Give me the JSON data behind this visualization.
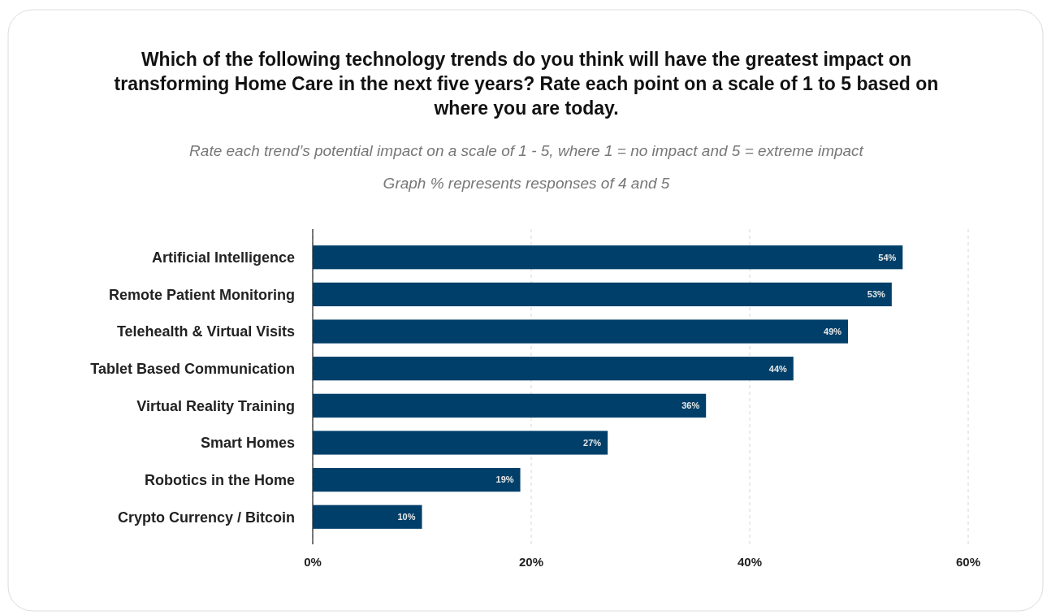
{
  "chart_data": {
    "type": "bar",
    "orientation": "horizontal",
    "title": "Which of the following technology trends do you think will have the greatest impact on transforming Home Care in the next five years? Rate each point on a scale of 1 to 5 based on where you are today.",
    "subtitle": "Rate each trend’s potential impact on a scale of 1 - 5, where 1 = no impact and 5 = extreme impact",
    "annotations": [
      "Graph % represents responses of 4 and 5"
    ],
    "categories": [
      "Artificial Intelligence",
      "Remote Patient Monitoring",
      "Telehealth & Virtual Visits",
      "Tablet Based Communication",
      "Virtual Reality Training",
      "Smart Homes",
      "Robotics in the Home",
      "Crypto Currency / Bitcoin"
    ],
    "values": [
      54,
      53,
      49,
      44,
      36,
      27,
      19,
      10
    ],
    "value_labels": [
      "54%",
      "53%",
      "49%",
      "44%",
      "36%",
      "27%",
      "19%",
      "10%"
    ],
    "color": "#003f69",
    "xlim": [
      0,
      60
    ],
    "xticks": [
      {
        "value": 0,
        "label": "0%"
      },
      {
        "value": 20,
        "label": "20%"
      },
      {
        "value": 40,
        "label": "40%"
      },
      {
        "value": 60,
        "label": "60%"
      }
    ],
    "grid": "x"
  }
}
